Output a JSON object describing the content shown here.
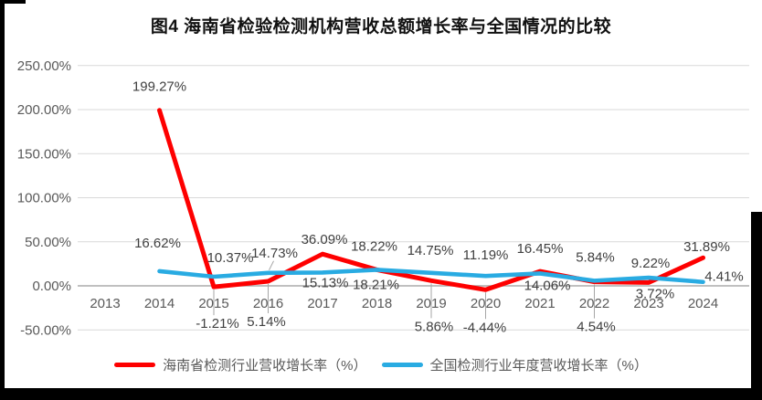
{
  "chart_data": {
    "type": "line",
    "title": "图4 海南省检验检测机构营收总额增长率与全国情况的比较",
    "categories": [
      "2013",
      "2014",
      "2015",
      "2016",
      "2017",
      "2018",
      "2019",
      "2020",
      "2021",
      "2022",
      "2023",
      "2024"
    ],
    "y_ticks": [
      "250.00%",
      "200.00%",
      "150.00%",
      "100.00%",
      "50.00%",
      "0.00%",
      "-50.00%"
    ],
    "y_tick_values": [
      250,
      200,
      150,
      100,
      50,
      0,
      -50
    ],
    "ylim": [
      -50,
      250
    ],
    "grid": true,
    "legend_position": "bottom",
    "series": [
      {
        "name": "海南省检测行业营收增长率（%）",
        "color": "#FE0000",
        "values": [
          null,
          199.27,
          -1.21,
          5.14,
          36.09,
          18.22,
          5.86,
          -4.44,
          16.45,
          4.54,
          3.72,
          31.89
        ],
        "point_labels": [
          null,
          "199.27%",
          "-1.21%",
          "5.14%",
          "36.09%",
          "18.22%",
          "5.86%",
          "-4.44%",
          "16.45%",
          "4.54%",
          "3.72%",
          "31.89%"
        ]
      },
      {
        "name": "全国检测行业年度营收增长率（%）",
        "color": "#29ABE2",
        "values": [
          null,
          16.62,
          10.37,
          14.73,
          15.13,
          18.21,
          14.75,
          11.19,
          14.06,
          5.84,
          9.22,
          4.41
        ],
        "point_labels": [
          null,
          "16.62%",
          "10.37%",
          "14.73%",
          "15.13%",
          "18.21%",
          "14.75%",
          "11.19%",
          "14.06%",
          "5.84%",
          "9.22%",
          "4.41%"
        ]
      }
    ],
    "colors": {
      "grid": "#D9D9D9",
      "zero_axis": "#ABABAB",
      "tick_text": "#595959",
      "data_label_text": "#404040",
      "leader": "#A6A6A6"
    },
    "label_layout": {
      "offsets": [
        [
          null,
          [
            0,
            -26
          ],
          [
            4,
            40
          ],
          [
            -2,
            44
          ],
          [
            2,
            -16
          ],
          [
            -3,
            -26
          ],
          [
            3,
            50
          ],
          [
            -1,
            41
          ],
          [
            0,
            -25
          ],
          [
            2,
            49
          ],
          [
            7,
            12
          ],
          [
            4,
            -12
          ]
        ],
        [
          null,
          [
            -2,
            -31
          ],
          [
            18,
            -21
          ],
          [
            7,
            -22
          ],
          [
            3,
            11
          ],
          [
            -1,
            16
          ],
          [
            -1,
            -25
          ],
          [
            0,
            -23
          ],
          [
            8,
            13
          ],
          [
            1,
            -26
          ],
          [
            2,
            -16
          ],
          [
            23,
            -6
          ]
        ]
      ],
      "leaders": [
        {
          "s": 0,
          "i": 2,
          "x1": 0,
          "y1": 3,
          "x2": 0,
          "y2": 31
        },
        {
          "s": 0,
          "i": 3,
          "x1": 0,
          "y1": 3,
          "x2": 0,
          "y2": 35
        },
        {
          "s": 0,
          "i": 6,
          "x1": 0,
          "y1": 3,
          "x2": 0,
          "y2": 41
        },
        {
          "s": 0,
          "i": 7,
          "x1": 0,
          "y1": 3,
          "x2": 0,
          "y2": 32
        },
        {
          "s": 0,
          "i": 9,
          "x1": 0,
          "y1": 3,
          "x2": 0,
          "y2": 40
        },
        {
          "s": 1,
          "i": 3,
          "x1": 1,
          "y1": -3,
          "x2": 6,
          "y2": -13
        }
      ]
    }
  }
}
